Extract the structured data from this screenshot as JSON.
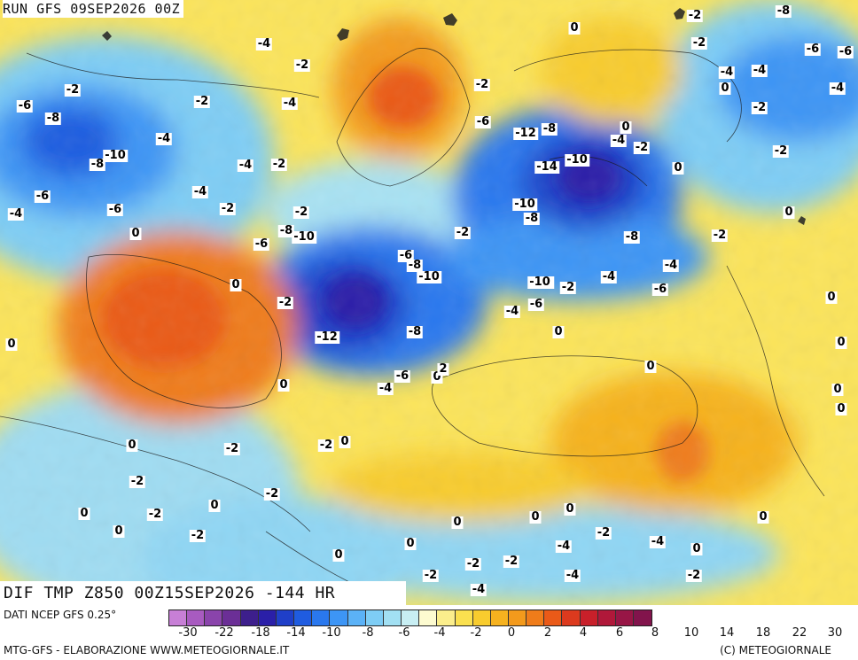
{
  "header": {
    "run_label": "RUN GFS 09SEP2026 00Z"
  },
  "title": {
    "text": "DIF TMP Z850 00Z15SEP2026 -144 HR"
  },
  "legend": {
    "source_label": "DATI NCEP GFS 0.25°",
    "swatch_colors": [
      "#c77fd6",
      "#a85bc0",
      "#8a44ab",
      "#6b2f96",
      "#3d1f8c",
      "#2a1fa8",
      "#1f3fc8",
      "#1f5ce0",
      "#2a78ee",
      "#3d95f5",
      "#5bb2f7",
      "#7ecdf5",
      "#a2e0f3",
      "#c8eef3",
      "#fdfbd0",
      "#fbee8c",
      "#fae04f",
      "#f8cc2e",
      "#f6b21f",
      "#f39a1c",
      "#ef7c1a",
      "#ea5a18",
      "#dc3a1e",
      "#c8202a",
      "#b0183a",
      "#981646",
      "#82144c"
    ],
    "tick_labels": [
      "-30",
      "-22",
      "-18",
      "-14",
      "-10",
      "-8",
      "-6",
      "-4",
      "-2",
      "0",
      "2",
      "4",
      "6",
      "8",
      "10",
      "14",
      "18",
      "22",
      "30"
    ],
    "credit_left": "MTG-GFS - ELABORAZIONE WWW.METEOGIORNALE.IT",
    "credit_right": "(C) METEOGIORNALE"
  },
  "map_labels": [
    {
      "t": "-2",
      "v": -2
    },
    {
      "t": "-8",
      "v": -8
    },
    {
      "t": "-4",
      "v": -4
    },
    {
      "t": "-2",
      "v": -2
    },
    {
      "t": "0",
      "v": 0
    },
    {
      "t": "-4",
      "v": -4
    },
    {
      "t": "-6",
      "v": -6
    },
    {
      "t": "-6",
      "v": -6
    },
    {
      "t": "-2",
      "v": -2
    },
    {
      "t": "-4",
      "v": -4
    },
    {
      "t": "0",
      "v": 0
    },
    {
      "t": "-2",
      "v": -2
    },
    {
      "t": "-2",
      "v": -2
    },
    {
      "t": "-2",
      "v": -2
    },
    {
      "t": "-4",
      "v": -4
    },
    {
      "t": "-2",
      "v": -2
    },
    {
      "t": "-4",
      "v": -4
    },
    {
      "t": "-6",
      "v": -6
    },
    {
      "t": "-8",
      "v": -8
    },
    {
      "t": "-6",
      "v": -6
    },
    {
      "t": "-12",
      "v": -12
    },
    {
      "t": "-8",
      "v": -8
    },
    {
      "t": "0",
      "v": 0
    },
    {
      "t": "-4",
      "v": -4
    },
    {
      "t": "-2",
      "v": -2
    },
    {
      "t": "-4",
      "v": -4
    },
    {
      "t": "-10",
      "v": -10
    },
    {
      "t": "-8",
      "v": -8
    },
    {
      "t": "-14",
      "v": -14
    },
    {
      "t": "-10",
      "v": -10
    },
    {
      "t": "-2",
      "v": -2
    },
    {
      "t": "0",
      "v": 0
    },
    {
      "t": "-2",
      "v": -2
    },
    {
      "t": "-4",
      "v": -4
    },
    {
      "t": "-4",
      "v": -4
    },
    {
      "t": "-6",
      "v": -6
    },
    {
      "t": "-2",
      "v": -2
    },
    {
      "t": "-4",
      "v": -4
    },
    {
      "t": "-6",
      "v": -6
    },
    {
      "t": "-2",
      "v": -2
    },
    {
      "t": "-10",
      "v": -10
    },
    {
      "t": "-10",
      "v": -10
    },
    {
      "t": "-8",
      "v": -8
    },
    {
      "t": "-8",
      "v": -8
    },
    {
      "t": "-2",
      "v": -2
    },
    {
      "t": "0",
      "v": 0
    },
    {
      "t": "-2",
      "v": -2
    },
    {
      "t": "0",
      "v": 0
    },
    {
      "t": "-6",
      "v": -6
    },
    {
      "t": "-8",
      "v": -8
    },
    {
      "t": "-10",
      "v": -10
    },
    {
      "t": "-6",
      "v": -6
    },
    {
      "t": "-10",
      "v": -10
    },
    {
      "t": "-2",
      "v": -2
    },
    {
      "t": "-4",
      "v": -4
    },
    {
      "t": "-8",
      "v": -8
    },
    {
      "t": "-4",
      "v": -4
    },
    {
      "t": "-6",
      "v": -6
    },
    {
      "t": "0",
      "v": 0
    },
    {
      "t": "-10",
      "v": -10
    },
    {
      "t": "-2",
      "v": -2
    },
    {
      "t": "-4",
      "v": -4
    },
    {
      "t": "-6",
      "v": -6
    },
    {
      "t": "-12",
      "v": -12
    },
    {
      "t": "-8",
      "v": -8
    },
    {
      "t": "0",
      "v": 0
    },
    {
      "t": "0",
      "v": 0
    },
    {
      "t": "-6",
      "v": -6
    },
    {
      "t": "-4",
      "v": -4
    },
    {
      "t": "0",
      "v": 0
    },
    {
      "t": "2",
      "v": 2
    },
    {
      "t": "0",
      "v": 0
    },
    {
      "t": "0",
      "v": 0
    },
    {
      "t": "0",
      "v": 0
    },
    {
      "t": "0",
      "v": 0
    },
    {
      "t": "-2",
      "v": -2
    },
    {
      "t": "0",
      "v": 0
    },
    {
      "t": "-2",
      "v": -2
    },
    {
      "t": "-2",
      "v": -2
    },
    {
      "t": "0",
      "v": 0
    },
    {
      "t": "-2",
      "v": -2
    },
    {
      "t": "0",
      "v": 0
    },
    {
      "t": "0",
      "v": 0
    },
    {
      "t": "0",
      "v": 0
    },
    {
      "t": "0",
      "v": 0
    },
    {
      "t": "-2",
      "v": -2
    },
    {
      "t": "0",
      "v": 0
    },
    {
      "t": "0",
      "v": 0
    },
    {
      "t": "0",
      "v": 0
    },
    {
      "t": "0",
      "v": 0
    },
    {
      "t": "-2",
      "v": -2
    },
    {
      "t": "-4",
      "v": -4
    },
    {
      "t": "0",
      "v": 0
    },
    {
      "t": "-4",
      "v": -4
    },
    {
      "t": "-2",
      "v": -2
    },
    {
      "t": "0",
      "v": 0
    },
    {
      "t": "-2",
      "v": -2
    },
    {
      "t": "-2",
      "v": -2
    },
    {
      "t": "-2",
      "v": -2
    },
    {
      "t": "-4",
      "v": -4
    },
    {
      "t": "-4",
      "v": -4
    },
    {
      "t": "0",
      "v": 0
    },
    {
      "t": "-2",
      "v": -2
    },
    {
      "t": "0",
      "v": 0
    }
  ]
}
